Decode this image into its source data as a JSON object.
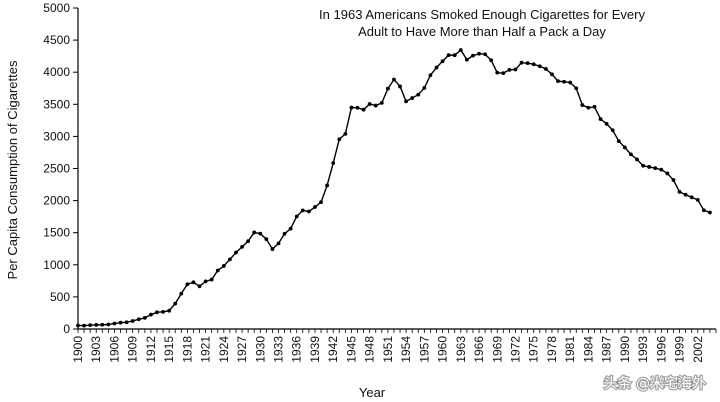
{
  "chart_data": {
    "type": "line",
    "title_lines": [
      "In 1963 Americans Smoked Enough Cigarettes for Every",
      "Adult to Have More than Half a Pack a Day"
    ],
    "xlabel": "Year",
    "ylabel": "Per Capita Consumption of Cigarettes",
    "xlim": [
      1900,
      2005
    ],
    "ylim": [
      0,
      5000
    ],
    "y_ticks": [
      0,
      500,
      1000,
      1500,
      2000,
      2500,
      3000,
      3500,
      4000,
      4500,
      5000
    ],
    "x_ticks": [
      1900,
      1903,
      1906,
      1909,
      1912,
      1915,
      1918,
      1921,
      1924,
      1927,
      1930,
      1933,
      1936,
      1939,
      1942,
      1945,
      1948,
      1951,
      1954,
      1957,
      1960,
      1963,
      1966,
      1969,
      1972,
      1975,
      1978,
      1981,
      1984,
      1987,
      1990,
      1993,
      1996,
      1999,
      2002
    ],
    "grid": false,
    "series": [
      {
        "points": [
          [
            1900,
            54
          ],
          [
            1901,
            53
          ],
          [
            1902,
            60
          ],
          [
            1903,
            64
          ],
          [
            1904,
            66
          ],
          [
            1905,
            70
          ],
          [
            1906,
            86
          ],
          [
            1907,
            99
          ],
          [
            1908,
            105
          ],
          [
            1909,
            125
          ],
          [
            1910,
            151
          ],
          [
            1911,
            173
          ],
          [
            1912,
            223
          ],
          [
            1913,
            260
          ],
          [
            1914,
            267
          ],
          [
            1915,
            285
          ],
          [
            1916,
            395
          ],
          [
            1917,
            551
          ],
          [
            1918,
            697
          ],
          [
            1919,
            727
          ],
          [
            1920,
            665
          ],
          [
            1921,
            742
          ],
          [
            1922,
            770
          ],
          [
            1923,
            911
          ],
          [
            1924,
            982
          ],
          [
            1925,
            1085
          ],
          [
            1926,
            1191
          ],
          [
            1927,
            1279
          ],
          [
            1928,
            1368
          ],
          [
            1929,
            1504
          ],
          [
            1930,
            1485
          ],
          [
            1931,
            1399
          ],
          [
            1932,
            1245
          ],
          [
            1933,
            1334
          ],
          [
            1934,
            1483
          ],
          [
            1935,
            1564
          ],
          [
            1936,
            1754
          ],
          [
            1937,
            1847
          ],
          [
            1938,
            1830
          ],
          [
            1939,
            1900
          ],
          [
            1940,
            1976
          ],
          [
            1941,
            2236
          ],
          [
            1942,
            2585
          ],
          [
            1943,
            2956
          ],
          [
            1944,
            3039
          ],
          [
            1945,
            3449
          ],
          [
            1946,
            3446
          ],
          [
            1947,
            3416
          ],
          [
            1948,
            3505
          ],
          [
            1949,
            3480
          ],
          [
            1950,
            3522
          ],
          [
            1951,
            3744
          ],
          [
            1952,
            3886
          ],
          [
            1953,
            3778
          ],
          [
            1954,
            3546
          ],
          [
            1955,
            3597
          ],
          [
            1956,
            3650
          ],
          [
            1957,
            3755
          ],
          [
            1958,
            3953
          ],
          [
            1959,
            4073
          ],
          [
            1960,
            4171
          ],
          [
            1961,
            4266
          ],
          [
            1962,
            4265
          ],
          [
            1963,
            4345
          ],
          [
            1964,
            4194
          ],
          [
            1965,
            4258
          ],
          [
            1966,
            4287
          ],
          [
            1967,
            4280
          ],
          [
            1968,
            4186
          ],
          [
            1969,
            3993
          ],
          [
            1970,
            3985
          ],
          [
            1971,
            4037
          ],
          [
            1972,
            4043
          ],
          [
            1973,
            4148
          ],
          [
            1974,
            4141
          ],
          [
            1975,
            4123
          ],
          [
            1976,
            4092
          ],
          [
            1977,
            4051
          ],
          [
            1978,
            3967
          ],
          [
            1979,
            3861
          ],
          [
            1980,
            3851
          ],
          [
            1981,
            3840
          ],
          [
            1982,
            3750
          ],
          [
            1983,
            3488
          ],
          [
            1984,
            3446
          ],
          [
            1985,
            3461
          ],
          [
            1986,
            3270
          ],
          [
            1987,
            3196
          ],
          [
            1988,
            3096
          ],
          [
            1989,
            2926
          ],
          [
            1990,
            2828
          ],
          [
            1991,
            2720
          ],
          [
            1992,
            2641
          ],
          [
            1993,
            2543
          ],
          [
            1994,
            2524
          ],
          [
            1995,
            2505
          ],
          [
            1996,
            2482
          ],
          [
            1997,
            2423
          ],
          [
            1998,
            2320
          ],
          [
            1999,
            2136
          ],
          [
            2000,
            2092
          ],
          [
            2001,
            2051
          ],
          [
            2002,
            2011
          ],
          [
            2003,
            1850
          ],
          [
            2004,
            1814
          ]
        ]
      }
    ]
  },
  "watermark": {
    "text": "头条 @米宅海外"
  }
}
